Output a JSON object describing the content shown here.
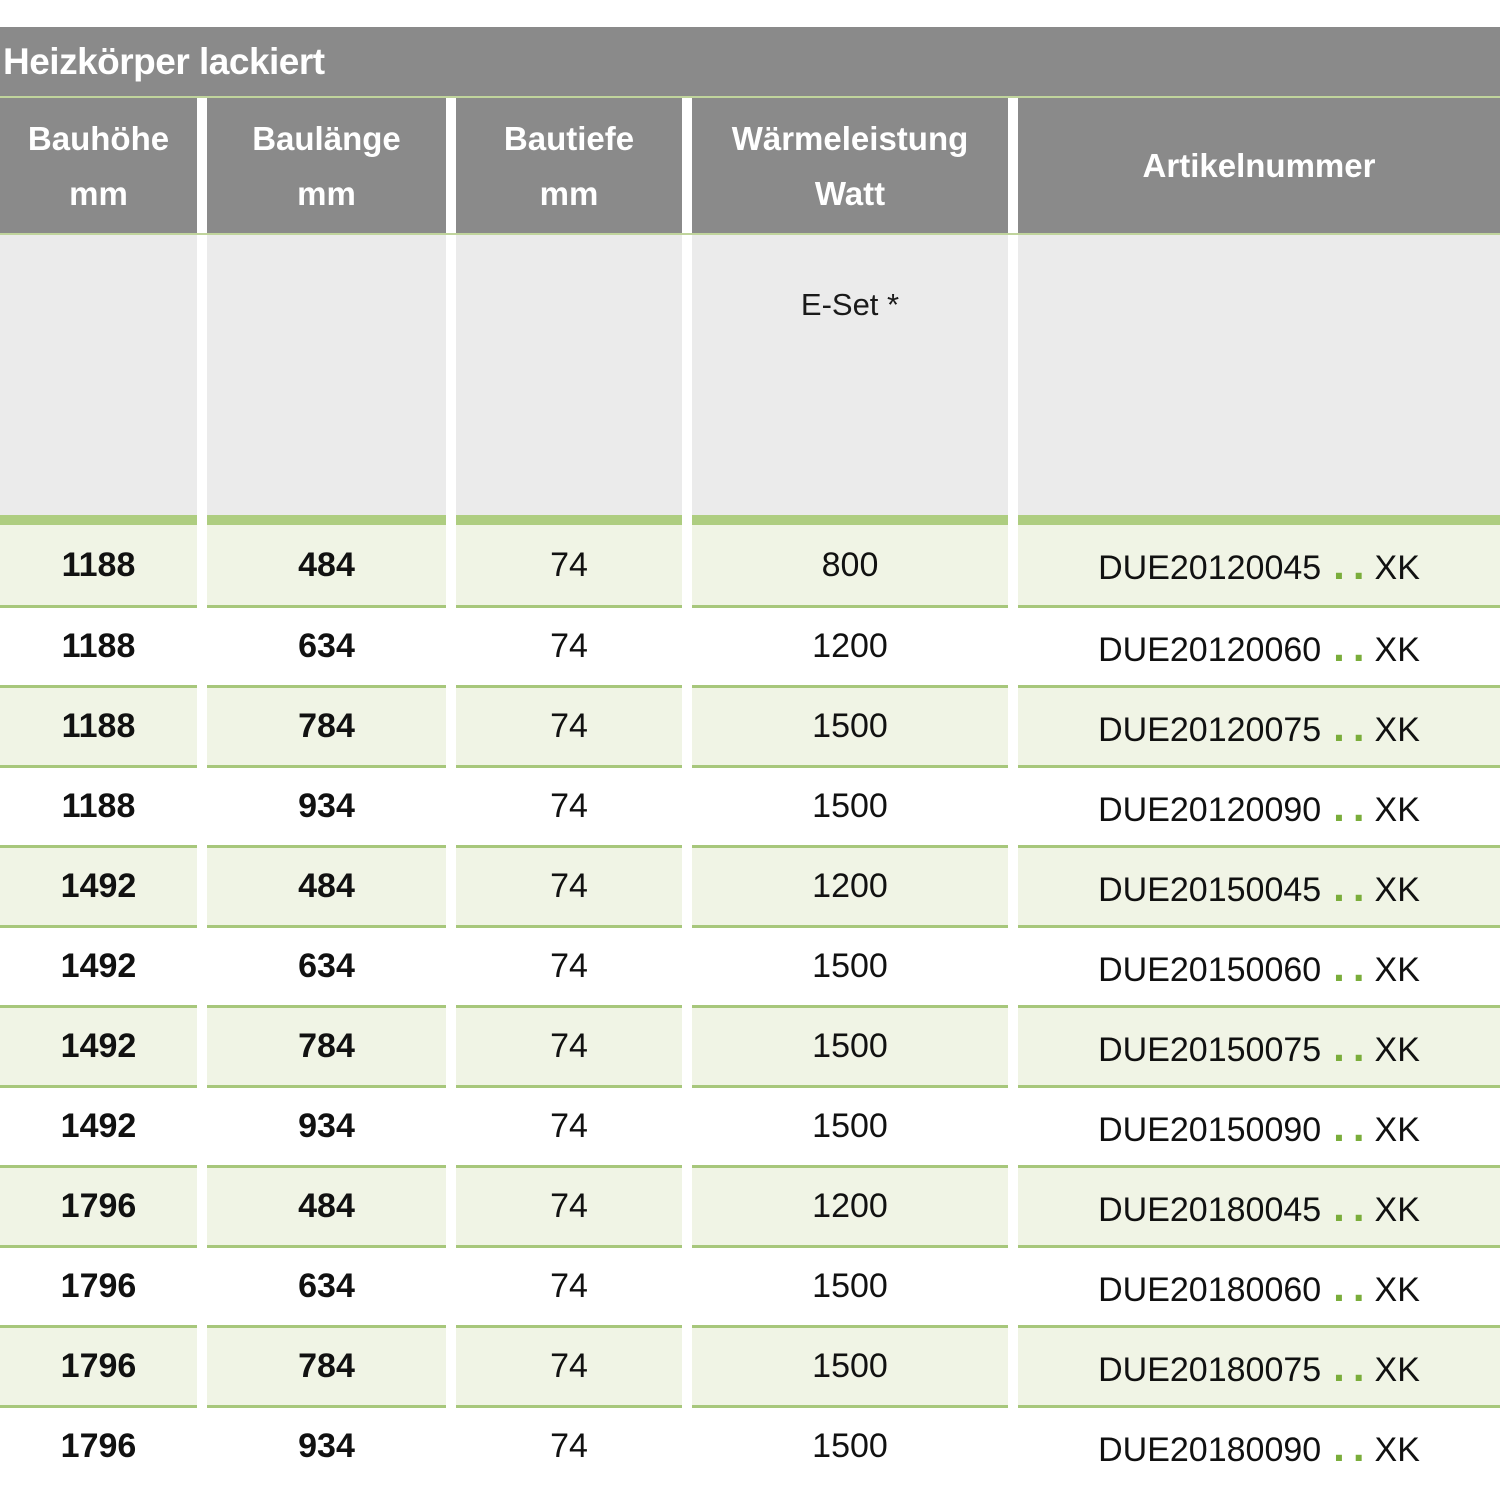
{
  "title": "Heizkörper lackiert",
  "table": {
    "columns": [
      {
        "line1": "Bauhöhe",
        "line2": "mm"
      },
      {
        "line1": "Baulänge",
        "line2": "mm"
      },
      {
        "line1": "Bautiefe",
        "line2": "mm"
      },
      {
        "line1": "Wärmeleistung",
        "line2": "Watt"
      },
      {
        "line1": "Artikelnummer",
        "line2": ""
      }
    ],
    "subheader": {
      "eset_label": "E-Set *"
    },
    "rows": [
      {
        "bauhoehe_mm": "1188",
        "baulaenge_mm": "484",
        "bautiefe_mm": "74",
        "waermeleistung_watt": "800",
        "artikelnummer_prefix": "DUE20120045",
        "artikelnummer_dots": "..",
        "artikelnummer_suffix": "XK"
      },
      {
        "bauhoehe_mm": "1188",
        "baulaenge_mm": "634",
        "bautiefe_mm": "74",
        "waermeleistung_watt": "1200",
        "artikelnummer_prefix": "DUE20120060",
        "artikelnummer_dots": "..",
        "artikelnummer_suffix": "XK"
      },
      {
        "bauhoehe_mm": "1188",
        "baulaenge_mm": "784",
        "bautiefe_mm": "74",
        "waermeleistung_watt": "1500",
        "artikelnummer_prefix": "DUE20120075",
        "artikelnummer_dots": "..",
        "artikelnummer_suffix": "XK"
      },
      {
        "bauhoehe_mm": "1188",
        "baulaenge_mm": "934",
        "bautiefe_mm": "74",
        "waermeleistung_watt": "1500",
        "artikelnummer_prefix": "DUE20120090",
        "artikelnummer_dots": "..",
        "artikelnummer_suffix": "XK"
      },
      {
        "bauhoehe_mm": "1492",
        "baulaenge_mm": "484",
        "bautiefe_mm": "74",
        "waermeleistung_watt": "1200",
        "artikelnummer_prefix": "DUE20150045",
        "artikelnummer_dots": "..",
        "artikelnummer_suffix": "XK"
      },
      {
        "bauhoehe_mm": "1492",
        "baulaenge_mm": "634",
        "bautiefe_mm": "74",
        "waermeleistung_watt": "1500",
        "artikelnummer_prefix": "DUE20150060",
        "artikelnummer_dots": "..",
        "artikelnummer_suffix": "XK"
      },
      {
        "bauhoehe_mm": "1492",
        "baulaenge_mm": "784",
        "bautiefe_mm": "74",
        "waermeleistung_watt": "1500",
        "artikelnummer_prefix": "DUE20150075",
        "artikelnummer_dots": "..",
        "artikelnummer_suffix": "XK"
      },
      {
        "bauhoehe_mm": "1492",
        "baulaenge_mm": "934",
        "bautiefe_mm": "74",
        "waermeleistung_watt": "1500",
        "artikelnummer_prefix": "DUE20150090",
        "artikelnummer_dots": "..",
        "artikelnummer_suffix": "XK"
      },
      {
        "bauhoehe_mm": "1796",
        "baulaenge_mm": "484",
        "bautiefe_mm": "74",
        "waermeleistung_watt": "1200",
        "artikelnummer_prefix": "DUE20180045",
        "artikelnummer_dots": "..",
        "artikelnummer_suffix": "XK"
      },
      {
        "bauhoehe_mm": "1796",
        "baulaenge_mm": "634",
        "bautiefe_mm": "74",
        "waermeleistung_watt": "1500",
        "artikelnummer_prefix": "DUE20180060",
        "artikelnummer_dots": "..",
        "artikelnummer_suffix": "XK"
      },
      {
        "bauhoehe_mm": "1796",
        "baulaenge_mm": "784",
        "bautiefe_mm": "74",
        "waermeleistung_watt": "1500",
        "artikelnummer_prefix": "DUE20180075",
        "artikelnummer_dots": "..",
        "artikelnummer_suffix": "XK"
      },
      {
        "bauhoehe_mm": "1796",
        "baulaenge_mm": "934",
        "bautiefe_mm": "74",
        "waermeleistung_watt": "1500",
        "artikelnummer_prefix": "DUE20180090",
        "artikelnummer_dots": "..",
        "artikelnummer_suffix": "XK"
      }
    ]
  },
  "colors": {
    "header_gray": "#8a8a8a",
    "subheader_gray": "#ebebeb",
    "row_green": "#f0f4e5",
    "separator_green": "#a7c77b",
    "bar_green": "#aecd80",
    "pale_line_green": "#c0d49c",
    "dot_green": "#7aad3b"
  }
}
